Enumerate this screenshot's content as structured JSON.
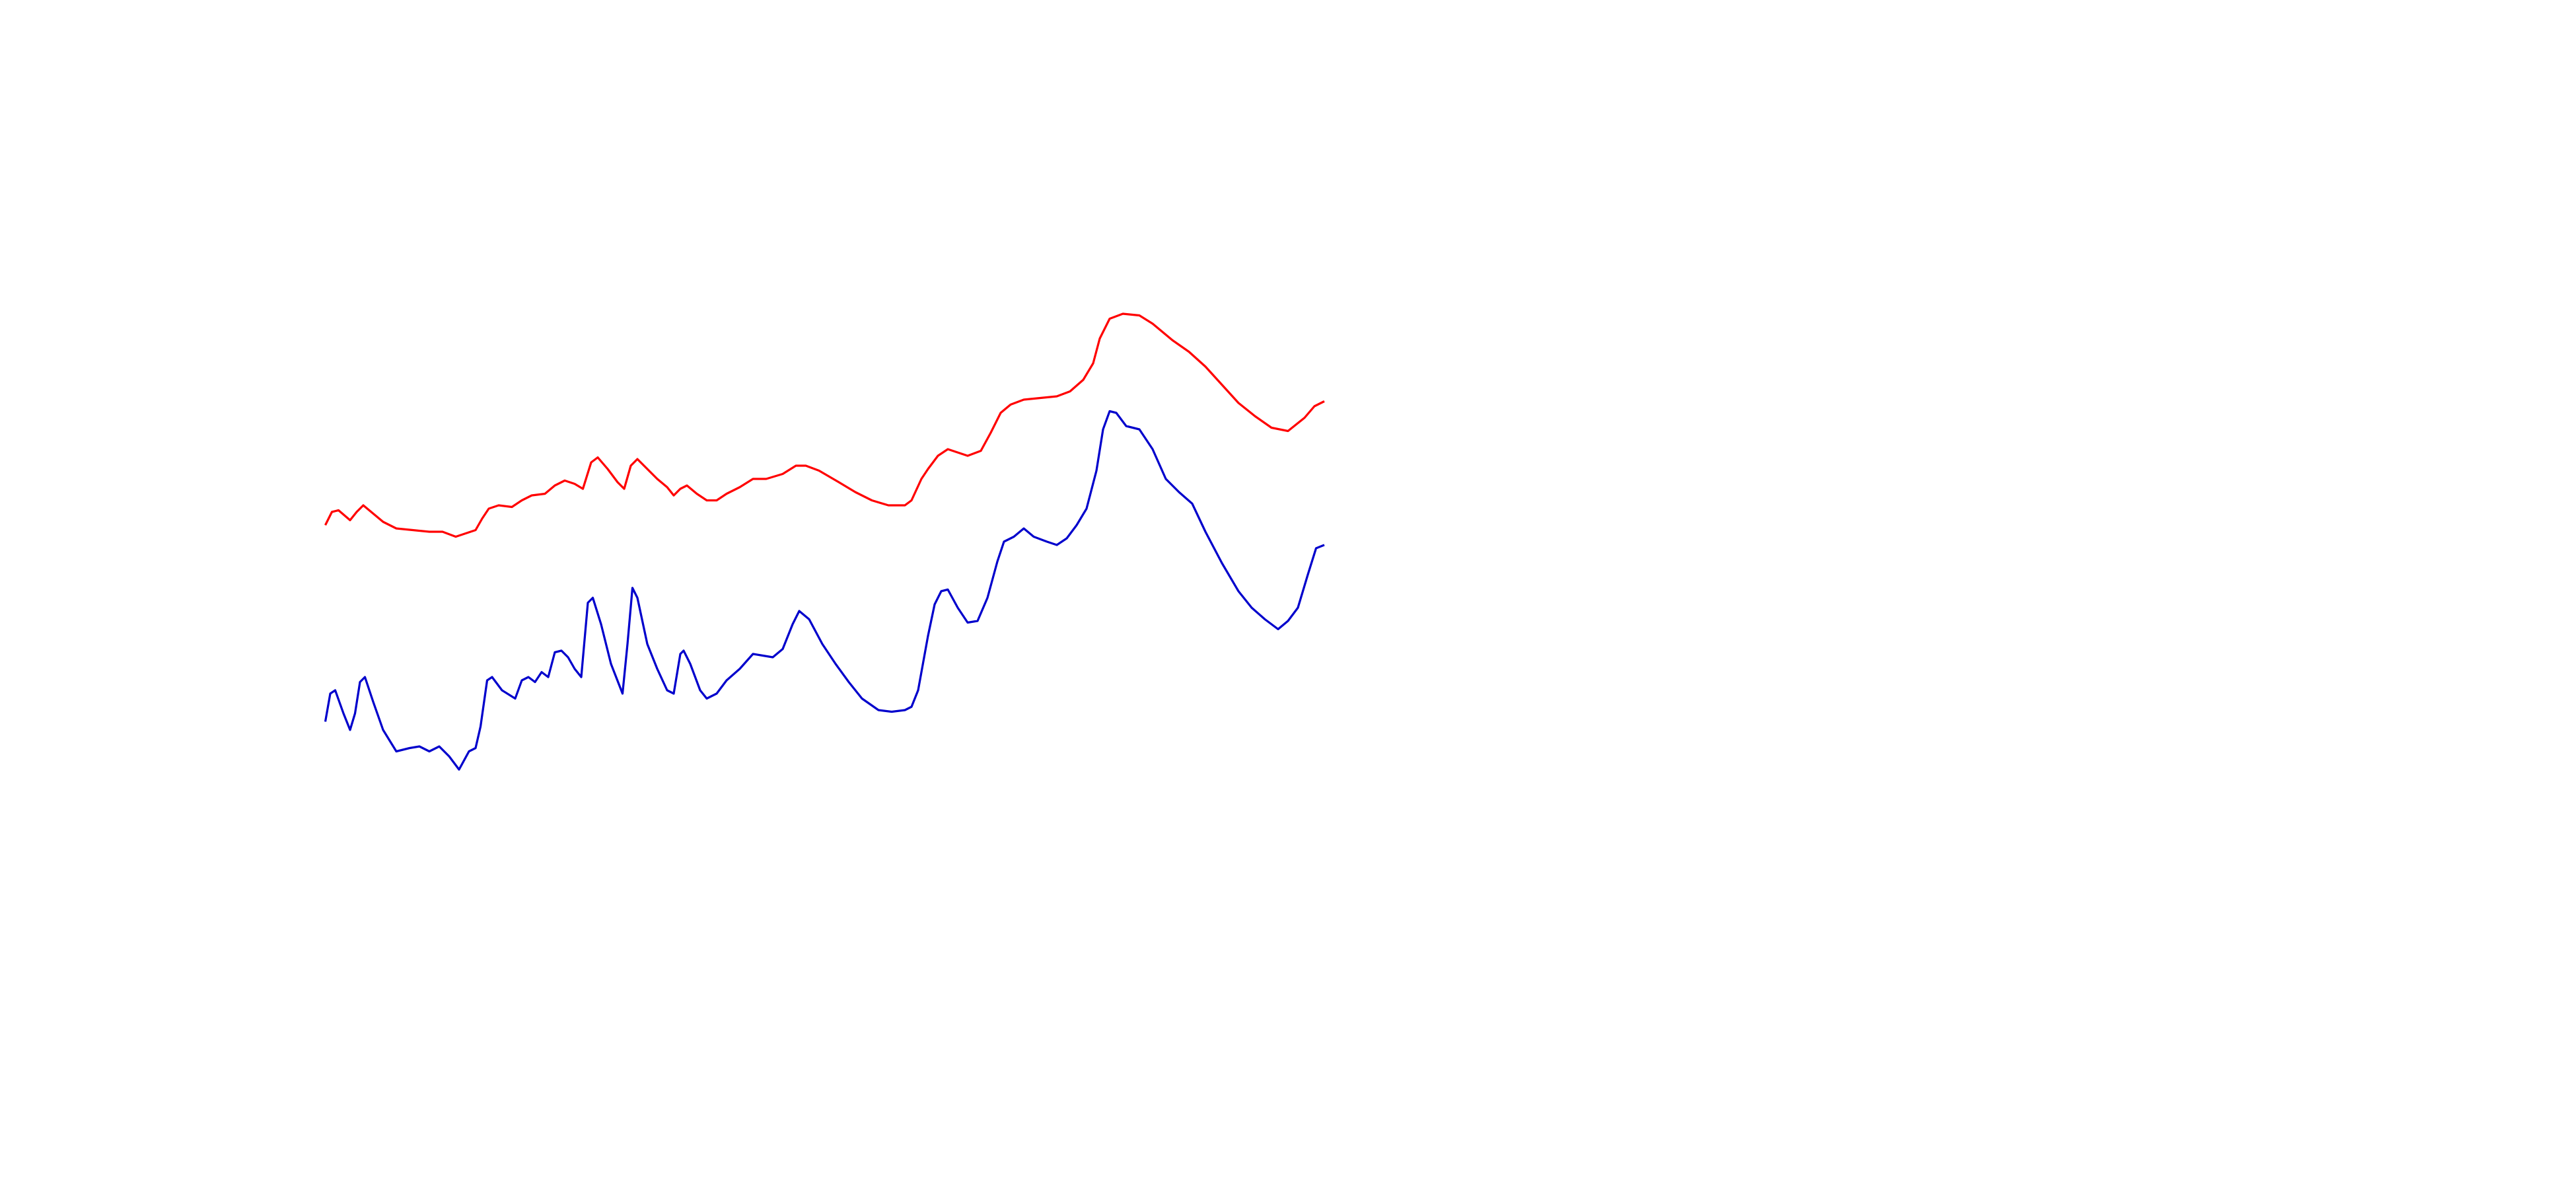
{
  "chart_data": {
    "type": "line",
    "xlim": [
      0,
      1560
    ],
    "ylim": [
      0,
      720
    ],
    "series": [
      {
        "color": "#ff0000",
        "x": [
          197,
          201,
          205,
          212,
          216,
          220,
          226,
          232,
          240,
          250,
          260,
          268,
          276,
          282,
          288,
          292,
          296,
          302,
          310,
          316,
          322,
          330,
          336,
          342,
          348,
          353,
          358,
          362,
          368,
          374,
          378,
          382,
          386,
          392,
          398,
          404,
          408,
          412,
          416,
          422,
          428,
          434,
          440,
          448,
          456,
          464,
          474,
          482,
          488,
          496,
          508,
          518,
          528,
          538,
          548,
          552,
          558,
          562,
          568,
          574,
          580,
          586,
          594,
          600,
          606,
          612,
          620,
          630,
          640,
          648,
          656,
          662,
          666,
          672,
          680,
          690,
          698,
          710,
          720,
          730,
          740,
          750,
          760,
          770,
          780,
          790,
          796,
          802
        ],
        "values": [
          402,
          410,
          411,
          405,
          410,
          414,
          409,
          404,
          400,
          399,
          398,
          398,
          395,
          397,
          399,
          406,
          412,
          414,
          413,
          417,
          420,
          421,
          426,
          429,
          427,
          424,
          440,
          443,
          436,
          428,
          424,
          438,
          442,
          436,
          430,
          425,
          420,
          424,
          426,
          421,
          417,
          417,
          421,
          425,
          430,
          430,
          433,
          438,
          438,
          435,
          428,
          422,
          417,
          414,
          414,
          417,
          430,
          436,
          444,
          448,
          446,
          444,
          447,
          458,
          470,
          475,
          478,
          479,
          480,
          483,
          490,
          500,
          515,
          527,
          530,
          529,
          524,
          514,
          507,
          498,
          487,
          476,
          468,
          461,
          459,
          467,
          474,
          477
        ]
      },
      {
        "color": "#0000cc",
        "x": [
          197,
          200,
          203,
          208,
          212,
          215,
          218,
          221,
          226,
          232,
          240,
          248,
          254,
          260,
          266,
          272,
          278,
          284,
          288,
          291,
          295,
          298,
          304,
          312,
          316,
          320,
          324,
          328,
          332,
          336,
          340,
          344,
          348,
          352,
          356,
          359,
          364,
          370,
          377,
          380,
          383,
          386,
          392,
          398,
          404,
          408,
          412,
          414,
          418,
          424,
          428,
          434,
          440,
          448,
          456,
          462,
          468,
          474,
          480,
          484,
          490,
          498,
          506,
          514,
          522,
          532,
          540,
          548,
          552,
          556,
          562,
          566,
          570,
          574,
          580,
          586,
          592,
          598,
          604,
          608,
          614,
          620,
          626,
          634,
          640,
          646,
          652,
          658,
          664,
          668,
          672,
          676,
          682,
          690,
          698,
          706,
          714,
          722,
          730,
          740,
          750,
          758,
          766,
          774,
          780,
          786,
          792,
          797,
          802
        ],
        "values": [
          283,
          300,
          302,
          288,
          278,
          288,
          307,
          310,
          295,
          278,
          265,
          267,
          268,
          265,
          268,
          262,
          254,
          265,
          267,
          280,
          308,
          310,
          302,
          297,
          308,
          310,
          307,
          313,
          310,
          325,
          326,
          322,
          315,
          310,
          355,
          358,
          342,
          318,
          300,
          330,
          364,
          358,
          330,
          315,
          302,
          300,
          324,
          326,
          318,
          302,
          297,
          300,
          308,
          315,
          324,
          323,
          322,
          327,
          342,
          350,
          345,
          330,
          318,
          307,
          297,
          290,
          289,
          290,
          292,
          302,
          335,
          354,
          362,
          363,
          352,
          343,
          344,
          358,
          380,
          392,
          395,
          400,
          395,
          392,
          390,
          394,
          402,
          412,
          435,
          460,
          471,
          470,
          462,
          460,
          448,
          430,
          422,
          415,
          398,
          379,
          362,
          352,
          345,
          339,
          344,
          352,
          372,
          388,
          390
        ]
      }
    ]
  }
}
